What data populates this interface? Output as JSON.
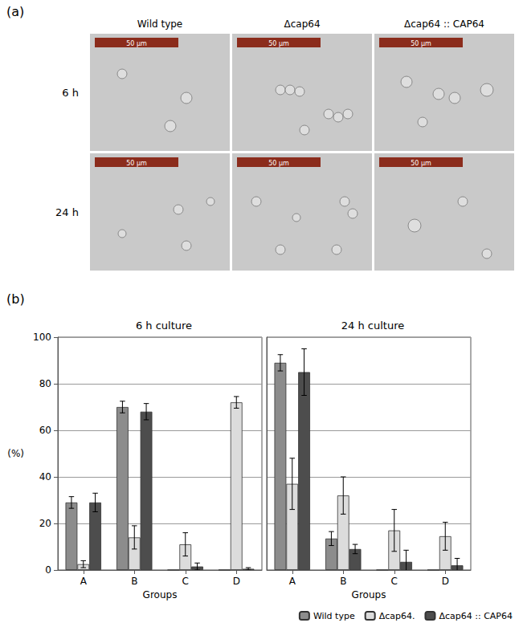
{
  "panel_a": {
    "label": "(a)",
    "columns": [
      "Wild type",
      "Δcap64",
      "Δcap64 :: CAP64"
    ],
    "rows": [
      "6 h",
      "24 h"
    ],
    "scale_bar": "50 µm"
  },
  "panel_b_label": "(b)",
  "chart_data": [
    {
      "type": "bar",
      "title": "6 h culture",
      "x_label": "Groups",
      "y_label": "(%)",
      "categories": [
        "A",
        "B",
        "C",
        "D"
      ],
      "ylim": [
        0,
        100
      ],
      "yticks": [
        0,
        20,
        40,
        60,
        80,
        100
      ],
      "grid": true,
      "tick_labels": true,
      "series": [
        {
          "name": "Wild type",
          "color": "#8c8c8c",
          "values": [
            29,
            70,
            0,
            0
          ],
          "errors": [
            2.5,
            2.5,
            0,
            0
          ]
        },
        {
          "name": "Δcap64.",
          "color": "#dcdcdc",
          "values": [
            2.5,
            14,
            11,
            72
          ],
          "errors": [
            1.5,
            5,
            5,
            2.5
          ]
        },
        {
          "name": "Δcap64 :: CAP64",
          "color": "#4d4d4d",
          "values": [
            29,
            68,
            1.5,
            0.5
          ],
          "errors": [
            4,
            3.5,
            1.5,
            0.5
          ]
        }
      ]
    },
    {
      "type": "bar",
      "title": "24 h culture",
      "x_label": "Groups",
      "categories": [
        "A",
        "B",
        "C",
        "D"
      ],
      "ylim": [
        0,
        100
      ],
      "yticks": [
        0,
        20,
        40,
        60,
        80,
        100
      ],
      "grid": true,
      "tick_labels": "x",
      "legend": "bottom right",
      "series": [
        {
          "name": "Wild type",
          "color": "#8c8c8c",
          "values": [
            89,
            13.5,
            0,
            0
          ],
          "errors": [
            3.5,
            3,
            0,
            0
          ]
        },
        {
          "name": "Δcap64.",
          "color": "#dcdcdc",
          "values": [
            37,
            32,
            17,
            14.5
          ],
          "errors": [
            11,
            8,
            9,
            6
          ]
        },
        {
          "name": "Δcap64 :: CAP64",
          "color": "#4d4d4d",
          "values": [
            85,
            9,
            3.5,
            2
          ],
          "errors": [
            10,
            2,
            5,
            3
          ]
        }
      ]
    }
  ]
}
